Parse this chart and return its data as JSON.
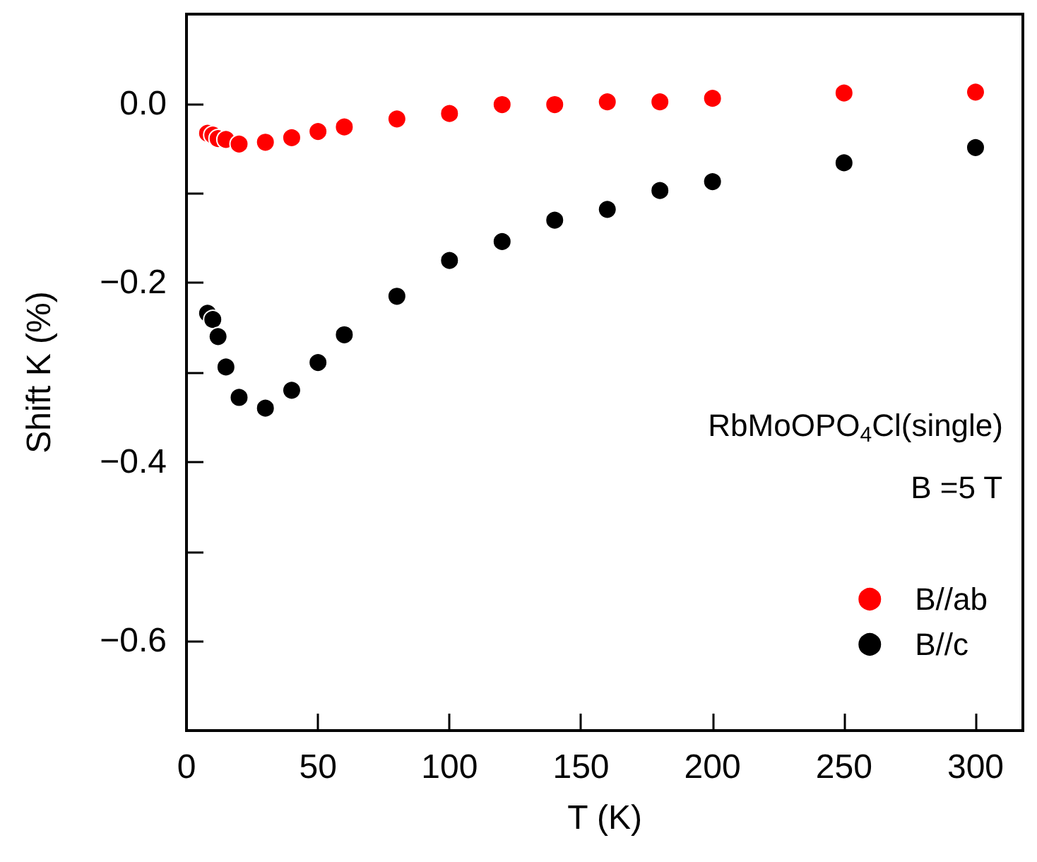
{
  "chart_data": {
    "type": "scatter",
    "xlabel": "T (K)",
    "ylabel": "Shift K (%)",
    "annotations": [
      "RbMoOPO$_{4}$Cl(single)",
      "B =5 T"
    ],
    "x": [
      8,
      10,
      12,
      15,
      20,
      30,
      40,
      50,
      60,
      80,
      100,
      120,
      140,
      160,
      180,
      200,
      250,
      300
    ],
    "series": [
      {
        "name": "B//ab",
        "color": "#ff0000",
        "values": [
          -0.033,
          -0.035,
          -0.039,
          -0.04,
          -0.045,
          -0.043,
          -0.038,
          -0.031,
          -0.026,
          -0.017,
          -0.011,
          -0.001,
          -0.001,
          0.002,
          0.002,
          0.006,
          0.012,
          0.013
        ]
      },
      {
        "name": "B//c",
        "color": "#000000",
        "values": [
          -0.234,
          -0.241,
          -0.26,
          -0.294,
          -0.328,
          -0.34,
          -0.32,
          -0.289,
          -0.258,
          -0.215,
          -0.175,
          -0.154,
          -0.13,
          -0.118,
          -0.097,
          -0.087,
          -0.066,
          -0.049
        ]
      }
    ],
    "xlim": [
      0,
      318
    ],
    "xticks": [
      0,
      50,
      100,
      150,
      200,
      250,
      300
    ],
    "ylim": [
      -0.7,
      0.1
    ],
    "yticks": [
      {
        "value": 0.1,
        "label": null
      },
      {
        "value": 0,
        "label": "0.0"
      },
      {
        "value": -0.1,
        "label": null
      },
      {
        "value": -0.2,
        "label": "−0.2"
      },
      {
        "value": -0.3,
        "label": null
      },
      {
        "value": -0.4,
        "label": "−0.4"
      },
      {
        "value": -0.5,
        "label": null
      },
      {
        "value": -0.6,
        "label": "−0.6"
      }
    ],
    "marker": "circle",
    "legend": "bottom right",
    "grid": false
  }
}
